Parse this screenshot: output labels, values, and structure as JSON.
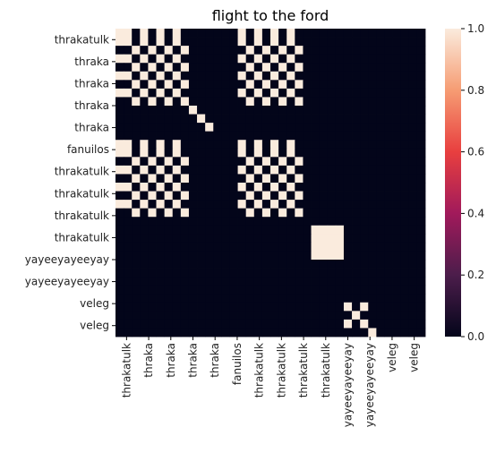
{
  "chart_data": {
    "type": "heatmap",
    "title": "flight to the ford",
    "xlabel": "",
    "ylabel": "",
    "x_tick_labels": [
      "thrakatulk",
      "thraka",
      "thraka",
      "thraka",
      "thraka",
      "fanuilos",
      "thrakatulk",
      "thrakatulk",
      "thrakatulk",
      "thrakatulk",
      "yayeeyayeeyay",
      "yayeeyayeeyay",
      "veleg",
      "veleg"
    ],
    "y_tick_labels": [
      "thrakatulk",
      "thraka",
      "thraka",
      "thraka",
      "thraka",
      "fanuilos",
      "thrakatulk",
      "thrakatulk",
      "thrakatulk",
      "thrakatulk",
      "yayeeyayeeyay",
      "yayeeyayeeyay",
      "veleg",
      "veleg"
    ],
    "matrix": [
      [
        1,
        1,
        0,
        1,
        0,
        1,
        0,
        1,
        0,
        0,
        0,
        0,
        0,
        0,
        0,
        1,
        0,
        1,
        0,
        1,
        0,
        1,
        0,
        0,
        0,
        0,
        0,
        0,
        0,
        0,
        0,
        0,
        0,
        0,
        0,
        0,
        0,
        0
      ],
      [
        1,
        1,
        0,
        1,
        0,
        1,
        0,
        1,
        0,
        0,
        0,
        0,
        0,
        0,
        0,
        1,
        0,
        1,
        0,
        1,
        0,
        1,
        0,
        0,
        0,
        0,
        0,
        0,
        0,
        0,
        0,
        0,
        0,
        0,
        0,
        0,
        0,
        0
      ],
      [
        0,
        0,
        1,
        0,
        1,
        0,
        1,
        0,
        1,
        0,
        0,
        0,
        0,
        0,
        0,
        0,
        1,
        0,
        1,
        0,
        1,
        0,
        1,
        0,
        0,
        0,
        0,
        0,
        0,
        0,
        0,
        0,
        0,
        0,
        0,
        0,
        0,
        0
      ],
      [
        1,
        1,
        0,
        1,
        0,
        1,
        0,
        1,
        0,
        0,
        0,
        0,
        0,
        0,
        0,
        1,
        0,
        1,
        0,
        1,
        0,
        1,
        0,
        0,
        0,
        0,
        0,
        0,
        0,
        0,
        0,
        0,
        0,
        0,
        0,
        0,
        0,
        0
      ],
      [
        0,
        0,
        1,
        0,
        1,
        0,
        1,
        0,
        1,
        0,
        0,
        0,
        0,
        0,
        0,
        0,
        1,
        0,
        1,
        0,
        1,
        0,
        1,
        0,
        0,
        0,
        0,
        0,
        0,
        0,
        0,
        0,
        0,
        0,
        0,
        0,
        0,
        0
      ],
      [
        1,
        1,
        0,
        1,
        0,
        1,
        0,
        1,
        0,
        0,
        0,
        0,
        0,
        0,
        0,
        1,
        0,
        1,
        0,
        1,
        0,
        1,
        0,
        0,
        0,
        0,
        0,
        0,
        0,
        0,
        0,
        0,
        0,
        0,
        0,
        0,
        0,
        0
      ],
      [
        0,
        0,
        1,
        0,
        1,
        0,
        1,
        0,
        1,
        0,
        0,
        0,
        0,
        0,
        0,
        0,
        1,
        0,
        1,
        0,
        1,
        0,
        1,
        0,
        0,
        0,
        0,
        0,
        0,
        0,
        0,
        0,
        0,
        0,
        0,
        0,
        0,
        0
      ],
      [
        1,
        1,
        0,
        1,
        0,
        1,
        0,
        1,
        0,
        0,
        0,
        0,
        0,
        0,
        0,
        1,
        0,
        1,
        0,
        1,
        0,
        1,
        0,
        0,
        0,
        0,
        0,
        0,
        0,
        0,
        0,
        0,
        0,
        0,
        0,
        0,
        0,
        0
      ],
      [
        0,
        0,
        1,
        0,
        1,
        0,
        1,
        0,
        1,
        0,
        0,
        0,
        0,
        0,
        0,
        0,
        1,
        0,
        1,
        0,
        1,
        0,
        1,
        0,
        0,
        0,
        0,
        0,
        0,
        0,
        0,
        0,
        0,
        0,
        0,
        0,
        0,
        0
      ],
      [
        0,
        0,
        0,
        0,
        0,
        0,
        0,
        0,
        0,
        1,
        0,
        0,
        0,
        0,
        0,
        0,
        0,
        0,
        0,
        0,
        0,
        0,
        0,
        0,
        0,
        0,
        0,
        0,
        0,
        0,
        0,
        0,
        0,
        0,
        0,
        0,
        0,
        0
      ],
      [
        0,
        0,
        0,
        0,
        0,
        0,
        0,
        0,
        0,
        0,
        1,
        0,
        0,
        0,
        0,
        0,
        0,
        0,
        0,
        0,
        0,
        0,
        0,
        0,
        0,
        0,
        0,
        0,
        0,
        0,
        0,
        0,
        0,
        0,
        0,
        0,
        0,
        0
      ],
      [
        0,
        0,
        0,
        0,
        0,
        0,
        0,
        0,
        0,
        0,
        0,
        1,
        0,
        0,
        0,
        0,
        0,
        0,
        0,
        0,
        0,
        0,
        0,
        0,
        0,
        0,
        0,
        0,
        0,
        0,
        0,
        0,
        0,
        0,
        0,
        0,
        0,
        0
      ],
      [
        0,
        0,
        0,
        0,
        0,
        0,
        0,
        0,
        0,
        0,
        0,
        0,
        0,
        0,
        0,
        0,
        0,
        0,
        0,
        0,
        0,
        0,
        0,
        0,
        0,
        0,
        0,
        0,
        0,
        0,
        0,
        0,
        0,
        0,
        0,
        0,
        0,
        0
      ],
      [
        1,
        1,
        0,
        1,
        0,
        1,
        0,
        1,
        0,
        0,
        0,
        0,
        0,
        0,
        0,
        1,
        0,
        1,
        0,
        1,
        0,
        1,
        0,
        0,
        0,
        0,
        0,
        0,
        0,
        0,
        0,
        0,
        0,
        0,
        0,
        0,
        0,
        0
      ],
      [
        1,
        1,
        0,
        1,
        0,
        1,
        0,
        1,
        0,
        0,
        0,
        0,
        0,
        0,
        0,
        1,
        0,
        1,
        0,
        1,
        0,
        1,
        0,
        0,
        0,
        0,
        0,
        0,
        0,
        0,
        0,
        0,
        0,
        0,
        0,
        0,
        0,
        0
      ],
      [
        0,
        0,
        1,
        0,
        1,
        0,
        1,
        0,
        1,
        0,
        0,
        0,
        0,
        0,
        0,
        0,
        1,
        0,
        1,
        0,
        1,
        0,
        1,
        0,
        0,
        0,
        0,
        0,
        0,
        0,
        0,
        0,
        0,
        0,
        0,
        0,
        0,
        0
      ],
      [
        1,
        1,
        0,
        1,
        0,
        1,
        0,
        1,
        0,
        0,
        0,
        0,
        0,
        0,
        0,
        1,
        0,
        1,
        0,
        1,
        0,
        1,
        0,
        0,
        0,
        0,
        0,
        0,
        0,
        0,
        0,
        0,
        0,
        0,
        0,
        0,
        0,
        0
      ],
      [
        0,
        0,
        1,
        0,
        1,
        0,
        1,
        0,
        1,
        0,
        0,
        0,
        0,
        0,
        0,
        0,
        1,
        0,
        1,
        0,
        1,
        0,
        1,
        0,
        0,
        0,
        0,
        0,
        0,
        0,
        0,
        0,
        0,
        0,
        0,
        0,
        0,
        0
      ],
      [
        1,
        1,
        0,
        1,
        0,
        1,
        0,
        1,
        0,
        0,
        0,
        0,
        0,
        0,
        0,
        1,
        0,
        1,
        0,
        1,
        0,
        1,
        0,
        0,
        0,
        0,
        0,
        0,
        0,
        0,
        0,
        0,
        0,
        0,
        0,
        0,
        0,
        0
      ],
      [
        0,
        0,
        1,
        0,
        1,
        0,
        1,
        0,
        1,
        0,
        0,
        0,
        0,
        0,
        0,
        0,
        1,
        0,
        1,
        0,
        1,
        0,
        1,
        0,
        0,
        0,
        0,
        0,
        0,
        0,
        0,
        0,
        0,
        0,
        0,
        0,
        0,
        0
      ],
      [
        1,
        1,
        0,
        1,
        0,
        1,
        0,
        1,
        0,
        0,
        0,
        0,
        0,
        0,
        0,
        1,
        0,
        1,
        0,
        1,
        0,
        1,
        0,
        0,
        0,
        0,
        0,
        0,
        0,
        0,
        0,
        0,
        0,
        0,
        0,
        0,
        0,
        0
      ],
      [
        0,
        0,
        1,
        0,
        1,
        0,
        1,
        0,
        1,
        0,
        0,
        0,
        0,
        0,
        0,
        0,
        1,
        0,
        1,
        0,
        1,
        0,
        1,
        0,
        0,
        0,
        0,
        0,
        0,
        0,
        0,
        0,
        0,
        0,
        0,
        0,
        0,
        0
      ],
      [
        0,
        0,
        0,
        0,
        0,
        0,
        0,
        0,
        0,
        0,
        0,
        0,
        0,
        0,
        0,
        0,
        0,
        0,
        0,
        0,
        0,
        0,
        0,
        0,
        0,
        0,
        0,
        0,
        0,
        0,
        0,
        0,
        0,
        0,
        0,
        0,
        0,
        0
      ],
      [
        0,
        0,
        0,
        0,
        0,
        0,
        0,
        0,
        0,
        0,
        0,
        0,
        0,
        0,
        0,
        0,
        0,
        0,
        0,
        0,
        0,
        0,
        0,
        0,
        1,
        1,
        1,
        1,
        0,
        0,
        0,
        0,
        0,
        0,
        0,
        0,
        0,
        0
      ],
      [
        0,
        0,
        0,
        0,
        0,
        0,
        0,
        0,
        0,
        0,
        0,
        0,
        0,
        0,
        0,
        0,
        0,
        0,
        0,
        0,
        0,
        0,
        0,
        0,
        1,
        1,
        1,
        1,
        0,
        0,
        0,
        0,
        0,
        0,
        0,
        0,
        0,
        0
      ],
      [
        0,
        0,
        0,
        0,
        0,
        0,
        0,
        0,
        0,
        0,
        0,
        0,
        0,
        0,
        0,
        0,
        0,
        0,
        0,
        0,
        0,
        0,
        0,
        0,
        1,
        1,
        1,
        1,
        0,
        0,
        0,
        0,
        0,
        0,
        0,
        0,
        0,
        0
      ],
      [
        0,
        0,
        0,
        0,
        0,
        0,
        0,
        0,
        0,
        0,
        0,
        0,
        0,
        0,
        0,
        0,
        0,
        0,
        0,
        0,
        0,
        0,
        0,
        0,
        1,
        1,
        1,
        1,
        0,
        0,
        0,
        0,
        0,
        0,
        0,
        0,
        0,
        0
      ],
      [
        0,
        0,
        0,
        0,
        0,
        0,
        0,
        0,
        0,
        0,
        0,
        0,
        0,
        0,
        0,
        0,
        0,
        0,
        0,
        0,
        0,
        0,
        0,
        0,
        0,
        0,
        0,
        0,
        0,
        0,
        0,
        0,
        0,
        0,
        0,
        0,
        0,
        0
      ],
      [
        0,
        0,
        0,
        0,
        0,
        0,
        0,
        0,
        0,
        0,
        0,
        0,
        0,
        0,
        0,
        0,
        0,
        0,
        0,
        0,
        0,
        0,
        0,
        0,
        0,
        0,
        0,
        0,
        0,
        0,
        0,
        0,
        0,
        0,
        0,
        0,
        0,
        0
      ],
      [
        0,
        0,
        0,
        0,
        0,
        0,
        0,
        0,
        0,
        0,
        0,
        0,
        0,
        0,
        0,
        0,
        0,
        0,
        0,
        0,
        0,
        0,
        0,
        0,
        0,
        0,
        0,
        0,
        0,
        0,
        0,
        0,
        0,
        0,
        0,
        0,
        0,
        0
      ],
      [
        0,
        0,
        0,
        0,
        0,
        0,
        0,
        0,
        0,
        0,
        0,
        0,
        0,
        0,
        0,
        0,
        0,
        0,
        0,
        0,
        0,
        0,
        0,
        0,
        0,
        0,
        0,
        0,
        0,
        0,
        0,
        0,
        0,
        0,
        0,
        0,
        0,
        0
      ],
      [
        0,
        0,
        0,
        0,
        0,
        0,
        0,
        0,
        0,
        0,
        0,
        0,
        0,
        0,
        0,
        0,
        0,
        0,
        0,
        0,
        0,
        0,
        0,
        0,
        0,
        0,
        0,
        0,
        0,
        0,
        0,
        0,
        0,
        0,
        0,
        0,
        0,
        0
      ],
      [
        0,
        0,
        0,
        0,
        0,
        0,
        0,
        0,
        0,
        0,
        0,
        0,
        0,
        0,
        0,
        0,
        0,
        0,
        0,
        0,
        0,
        0,
        0,
        0,
        0,
        0,
        0,
        0,
        1,
        0,
        1,
        0,
        0,
        0,
        0,
        0,
        0,
        0
      ],
      [
        0,
        0,
        0,
        0,
        0,
        0,
        0,
        0,
        0,
        0,
        0,
        0,
        0,
        0,
        0,
        0,
        0,
        0,
        0,
        0,
        0,
        0,
        0,
        0,
        0,
        0,
        0,
        0,
        0,
        1,
        0,
        0,
        0,
        0,
        0,
        0,
        0,
        0
      ],
      [
        0,
        0,
        0,
        0,
        0,
        0,
        0,
        0,
        0,
        0,
        0,
        0,
        0,
        0,
        0,
        0,
        0,
        0,
        0,
        0,
        0,
        0,
        0,
        0,
        0,
        0,
        0,
        0,
        1,
        0,
        1,
        0,
        0,
        0,
        0,
        0,
        0,
        0
      ],
      [
        0,
        0,
        0,
        0,
        0,
        0,
        0,
        0,
        0,
        0,
        0,
        0,
        0,
        0,
        0,
        0,
        0,
        0,
        0,
        0,
        0,
        0,
        0,
        0,
        0,
        0,
        0,
        0,
        0,
        0,
        0,
        1,
        0,
        0,
        0,
        0,
        0,
        0
      ]
    ],
    "value_range": [
      0.0,
      1.0
    ],
    "colorbar": {
      "ticks": [
        0.0,
        0.2,
        0.4,
        0.6,
        0.8,
        1.0
      ],
      "tick_labels": [
        "0.0",
        "0.2",
        "0.4",
        "0.6",
        "0.8",
        "1.0"
      ],
      "colormap_stops": [
        "#03051a",
        "#4c1d4b",
        "#a11a5b",
        "#e83f3f",
        "#f69c73",
        "#faebdd"
      ]
    },
    "grid": false,
    "legend": "colorbar-right"
  }
}
